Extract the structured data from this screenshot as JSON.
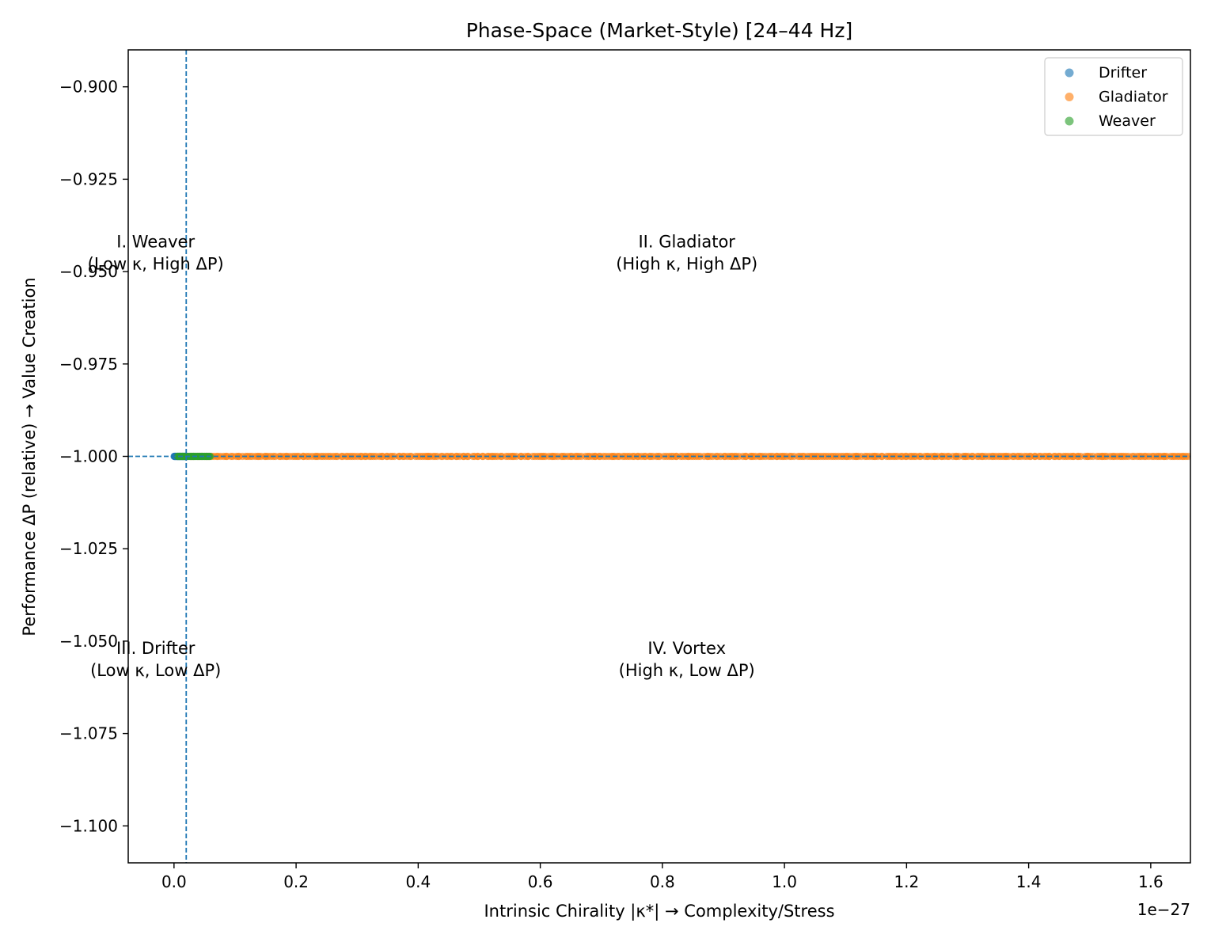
{
  "chart_data": {
    "type": "scatter",
    "title": "Phase-Space (Market-Style)  [24–44 Hz]",
    "xlabel": "Intrinsic Chirality |κ*|  → Complexity/Stress",
    "ylabel": "Performance ΔP (relative) → Value Creation",
    "x_offset_label": "1e−27",
    "x_unit_scale": 1e-27,
    "xlim": [
      -0.075,
      1.665
    ],
    "ylim": [
      -1.11,
      -0.89
    ],
    "x_ticks": [
      0.0,
      0.2,
      0.4,
      0.6,
      0.8,
      1.0,
      1.2,
      1.4,
      1.6
    ],
    "x_tick_labels": [
      "0.0",
      "0.2",
      "0.4",
      "0.6",
      "0.8",
      "1.0",
      "1.2",
      "1.4",
      "1.6"
    ],
    "y_ticks": [
      -0.9,
      -0.925,
      -0.95,
      -0.975,
      -1.0,
      -1.025,
      -1.05,
      -1.075,
      -1.1
    ],
    "y_tick_labels": [
      "−0.900",
      "−0.925",
      "−0.950",
      "−0.975",
      "−1.000",
      "−1.025",
      "−1.050",
      "−1.075",
      "−1.100"
    ],
    "grid": false,
    "legend_position": "top-right",
    "threshold_lines": {
      "x": 0.02,
      "y": -1.0,
      "color": "#1f77b4",
      "style": "dashed"
    },
    "quadrant_labels": [
      {
        "id": "I",
        "line1": "I. Weaver",
        "line2": "(Low κ, High ΔP)",
        "x": -0.03,
        "y": -0.9435
      },
      {
        "id": "II",
        "line1": "II. Gladiator",
        "line2": "(High κ, High ΔP)",
        "x": 0.84,
        "y": -0.9435
      },
      {
        "id": "III",
        "line1": "III. Drifter",
        "line2": "(Low κ, Low ΔP)",
        "x": -0.03,
        "y": -1.0535
      },
      {
        "id": "IV",
        "line1": "IV. Vortex",
        "line2": "(High κ, Low ΔP)",
        "x": 0.84,
        "y": -1.0535
      }
    ],
    "series": [
      {
        "name": "Drifter",
        "color": "#1f77b4",
        "y": -1.0,
        "x_range": [
          0.0,
          0.02
        ],
        "count": 40
      },
      {
        "name": "Gladiator",
        "color": "#ff7f0e",
        "y": -1.0,
        "x_range": [
          0.02,
          1.665
        ],
        "count": 420
      },
      {
        "name": "Weaver",
        "color": "#2ca02c",
        "y": -1.0,
        "x_range": [
          0.005,
          0.06
        ],
        "count": 45
      }
    ]
  }
}
